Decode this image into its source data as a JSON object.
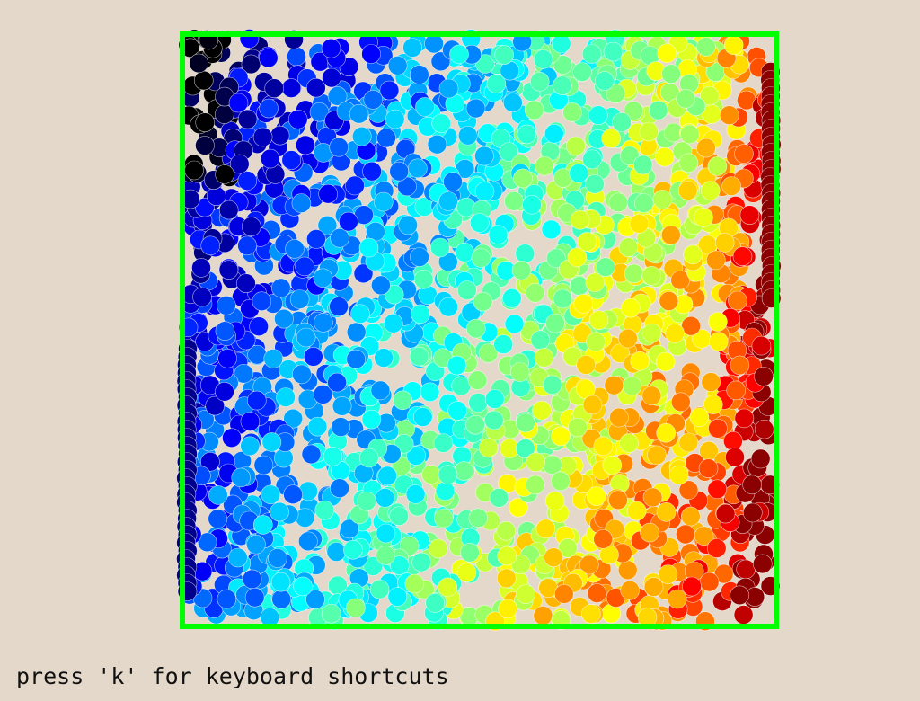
{
  "app": {
    "help_text": "press 'k' for keyboard shortcuts"
  },
  "simulation": {
    "background_color": "#e4d8ca",
    "container_border_color": "#00ff00",
    "container_border_width": 6,
    "particle_radius": 10.5,
    "particle_outline_color": "#ffffff",
    "color_scale": "jet",
    "color_scale_stops": [
      "#000000",
      "#00008b",
      "#0000ff",
      "#0080ff",
      "#00ffff",
      "#80ff80",
      "#ffff00",
      "#ff8000",
      "#ff0000",
      "#8b0000"
    ],
    "gradient_direction": "top-left cold to right hot",
    "hot_wall_color": "#8b0000",
    "cold_wall_color": "#00008b"
  }
}
